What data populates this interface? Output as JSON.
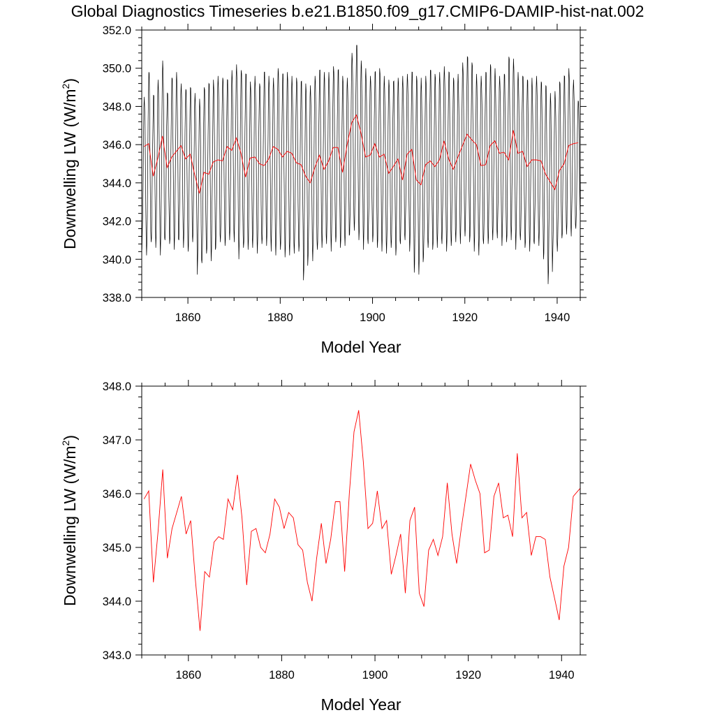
{
  "figure": {
    "title": "Global Diagnostics Timeseries b.e21.B1850.f09_g17.CMIP6-DAMIP-hist-nat.002"
  },
  "chart_data": [
    {
      "type": "line",
      "title": "Global Diagnostics Timeseries b.e21.B1850.f09_g17.CMIP6-DAMIP-hist-nat.002",
      "xlabel": "Model Year",
      "ylabel_main": "Downwelling LW (W/m",
      "ylabel_sup": "2",
      "ylabel_close": ")",
      "xlim": [
        1850,
        1945
      ],
      "ylim": [
        338.0,
        352.0
      ],
      "xticks": [
        1860,
        1880,
        1900,
        1920,
        1940
      ],
      "xtick_labels": [
        "1860",
        "1880",
        "1900",
        "1920",
        "1940"
      ],
      "yticks": [
        338.0,
        340.0,
        342.0,
        344.0,
        346.0,
        348.0,
        350.0,
        352.0
      ],
      "ytick_labels": [
        "338.0",
        "340.0",
        "342.0",
        "344.0",
        "346.0",
        "348.0",
        "350.0",
        "352.0"
      ],
      "grid": false,
      "series": [
        {
          "color": "#000000",
          "frequency": "monthly",
          "start_year": 1850,
          "annual_cycle": [
            -4.2,
            -3.6,
            -2.2,
            -0.4,
            1.6,
            3.2,
            4.1,
            3.8,
            2.5,
            0.6,
            -1.6,
            -3.4
          ],
          "year_min": [
            340.5,
            340.2,
            340.9,
            340.6,
            340.2,
            341.0,
            340.8,
            340.5,
            341.0,
            340.6,
            340.4,
            340.9,
            339.2,
            339.8,
            340.3,
            339.9,
            340.6,
            340.9,
            340.7,
            341.0,
            340.9,
            340.0,
            340.6,
            340.5,
            340.6,
            340.3,
            340.8,
            340.7,
            340.4,
            340.2,
            340.5,
            340.1,
            340.2,
            340.3,
            340.4,
            338.9,
            340.2,
            339.9,
            340.5,
            340.6,
            340.8,
            340.4,
            340.9,
            340.6,
            340.7,
            341.3,
            341.5,
            341.0,
            340.5,
            340.8,
            340.9,
            340.6,
            340.4,
            340.3,
            340.6,
            340.2,
            340.8,
            341.0,
            340.4,
            339.3,
            339.2,
            340.1,
            340.6,
            340.5,
            340.6,
            340.8,
            340.4,
            340.7,
            340.9,
            340.8,
            341.2,
            340.9,
            340.4,
            340.2,
            340.8,
            340.8,
            341.0,
            341.1,
            340.7,
            340.9,
            341.0,
            340.5,
            341.0,
            340.6,
            340.4,
            340.8,
            340.7,
            340.0,
            338.7,
            340.2,
            340.4,
            341.1,
            341.3,
            341.2,
            341.6
          ],
          "year_max": [
            348.5,
            349.8,
            348.6,
            349.4,
            350.4,
            348.7,
            349.5,
            349.8,
            349.2,
            348.9,
            349.0,
            348.7,
            348.4,
            349.0,
            349.2,
            349.4,
            349.6,
            349.5,
            349.4,
            349.9,
            350.2,
            349.9,
            349.7,
            349.3,
            349.6,
            349.2,
            349.8,
            349.6,
            349.5,
            350.0,
            349.7,
            349.8,
            349.6,
            349.5,
            349.3,
            349.2,
            349.1,
            349.6,
            349.9,
            349.8,
            349.8,
            350.1,
            349.9,
            349.6,
            349.5,
            350.8,
            351.2,
            350.4,
            350.0,
            349.6,
            349.8,
            350.0,
            349.6,
            349.4,
            349.3,
            349.5,
            349.6,
            349.7,
            349.8,
            349.6,
            349.5,
            349.6,
            349.9,
            349.7,
            349.8,
            350.1,
            349.8,
            349.5,
            349.7,
            350.3,
            350.6,
            350.3,
            349.7,
            349.6,
            349.8,
            350.2,
            350.0,
            349.6,
            349.7,
            350.6,
            350.5,
            349.8,
            349.6,
            349.4,
            349.5,
            349.6,
            349.3,
            349.1,
            348.7,
            348.8,
            349.3,
            349.6,
            350.0,
            349.4,
            348.3
          ]
        },
        {
          "color": "#ff0000",
          "frequency": "annual",
          "x": [
            1850,
            1851,
            1852,
            1853,
            1854,
            1855,
            1856,
            1857,
            1858,
            1859,
            1860,
            1861,
            1862,
            1863,
            1864,
            1865,
            1866,
            1867,
            1868,
            1869,
            1870,
            1871,
            1872,
            1873,
            1874,
            1875,
            1876,
            1877,
            1878,
            1879,
            1880,
            1881,
            1882,
            1883,
            1884,
            1885,
            1886,
            1887,
            1888,
            1889,
            1890,
            1891,
            1892,
            1893,
            1894,
            1895,
            1896,
            1897,
            1898,
            1899,
            1900,
            1901,
            1902,
            1903,
            1904,
            1905,
            1906,
            1907,
            1908,
            1909,
            1910,
            1911,
            1912,
            1913,
            1914,
            1915,
            1916,
            1917,
            1918,
            1919,
            1920,
            1921,
            1922,
            1923,
            1924,
            1925,
            1926,
            1927,
            1928,
            1929,
            1930,
            1931,
            1932,
            1933,
            1934,
            1935,
            1936,
            1937,
            1938,
            1939,
            1940,
            1941,
            1942,
            1943,
            1944
          ],
          "values": [
            345.9,
            346.05,
            344.35,
            345.3,
            346.45,
            344.8,
            345.35,
            345.65,
            345.95,
            345.25,
            345.5,
            344.4,
            343.45,
            344.55,
            344.45,
            345.1,
            345.2,
            345.15,
            345.9,
            345.7,
            346.35,
            345.55,
            344.3,
            345.3,
            345.35,
            345.0,
            344.9,
            345.25,
            345.9,
            345.75,
            345.35,
            345.65,
            345.55,
            345.05,
            344.95,
            344.35,
            344.0,
            344.8,
            345.45,
            344.7,
            345.15,
            345.85,
            345.85,
            344.55,
            346.0,
            347.15,
            347.55,
            346.6,
            345.35,
            345.45,
            346.05,
            345.35,
            345.5,
            344.5,
            344.85,
            345.25,
            344.15,
            345.5,
            345.75,
            344.15,
            343.9,
            344.95,
            345.15,
            344.85,
            345.2,
            346.2,
            345.25,
            344.7,
            345.35,
            345.95,
            346.55,
            346.25,
            346.0,
            344.9,
            344.95,
            345.95,
            346.2,
            345.55,
            345.6,
            345.2,
            346.75,
            345.55,
            345.65,
            344.85,
            345.2,
            345.2,
            345.15,
            344.45,
            344.05,
            343.65,
            344.65,
            345.0,
            345.95,
            346.05,
            346.1
          ]
        }
      ]
    },
    {
      "type": "line",
      "xlabel": "Model Year",
      "ylabel_main": "Downwelling LW (W/m",
      "ylabel_sup": "2",
      "ylabel_close": ")",
      "xlim": [
        1850,
        1944
      ],
      "ylim": [
        343.0,
        348.0
      ],
      "xticks": [
        1860,
        1880,
        1900,
        1920,
        1940
      ],
      "xtick_labels": [
        "1860",
        "1880",
        "1900",
        "1920",
        "1940"
      ],
      "yticks": [
        343.0,
        344.0,
        345.0,
        346.0,
        347.0,
        348.0
      ],
      "ytick_labels": [
        "343.0",
        "344.0",
        "345.0",
        "346.0",
        "347.0",
        "348.0"
      ],
      "grid": false,
      "series": [
        {
          "color": "#ff0000",
          "frequency": "annual",
          "x": [
            1850,
            1851,
            1852,
            1853,
            1854,
            1855,
            1856,
            1857,
            1858,
            1859,
            1860,
            1861,
            1862,
            1863,
            1864,
            1865,
            1866,
            1867,
            1868,
            1869,
            1870,
            1871,
            1872,
            1873,
            1874,
            1875,
            1876,
            1877,
            1878,
            1879,
            1880,
            1881,
            1882,
            1883,
            1884,
            1885,
            1886,
            1887,
            1888,
            1889,
            1890,
            1891,
            1892,
            1893,
            1894,
            1895,
            1896,
            1897,
            1898,
            1899,
            1900,
            1901,
            1902,
            1903,
            1904,
            1905,
            1906,
            1907,
            1908,
            1909,
            1910,
            1911,
            1912,
            1913,
            1914,
            1915,
            1916,
            1917,
            1918,
            1919,
            1920,
            1921,
            1922,
            1923,
            1924,
            1925,
            1926,
            1927,
            1928,
            1929,
            1930,
            1931,
            1932,
            1933,
            1934,
            1935,
            1936,
            1937,
            1938,
            1939,
            1940,
            1941,
            1942,
            1943,
            1944
          ],
          "values": [
            345.9,
            346.05,
            344.35,
            345.3,
            346.45,
            344.8,
            345.35,
            345.65,
            345.95,
            345.25,
            345.5,
            344.4,
            343.45,
            344.55,
            344.45,
            345.1,
            345.2,
            345.15,
            345.9,
            345.7,
            346.35,
            345.55,
            344.3,
            345.3,
            345.35,
            345.0,
            344.9,
            345.25,
            345.9,
            345.75,
            345.35,
            345.65,
            345.55,
            345.05,
            344.95,
            344.35,
            344.0,
            344.8,
            345.45,
            344.7,
            345.15,
            345.85,
            345.85,
            344.55,
            346.0,
            347.15,
            347.55,
            346.6,
            345.35,
            345.45,
            346.05,
            345.35,
            345.5,
            344.5,
            344.85,
            345.25,
            344.15,
            345.5,
            345.75,
            344.15,
            343.9,
            344.95,
            345.15,
            344.85,
            345.2,
            346.2,
            345.25,
            344.7,
            345.35,
            345.95,
            346.55,
            346.25,
            346.0,
            344.9,
            344.95,
            345.95,
            346.2,
            345.55,
            345.6,
            345.2,
            346.75,
            345.55,
            345.65,
            344.85,
            345.2,
            345.2,
            345.15,
            344.45,
            344.05,
            343.65,
            344.65,
            345.0,
            345.95,
            346.05,
            346.1
          ]
        }
      ]
    }
  ]
}
